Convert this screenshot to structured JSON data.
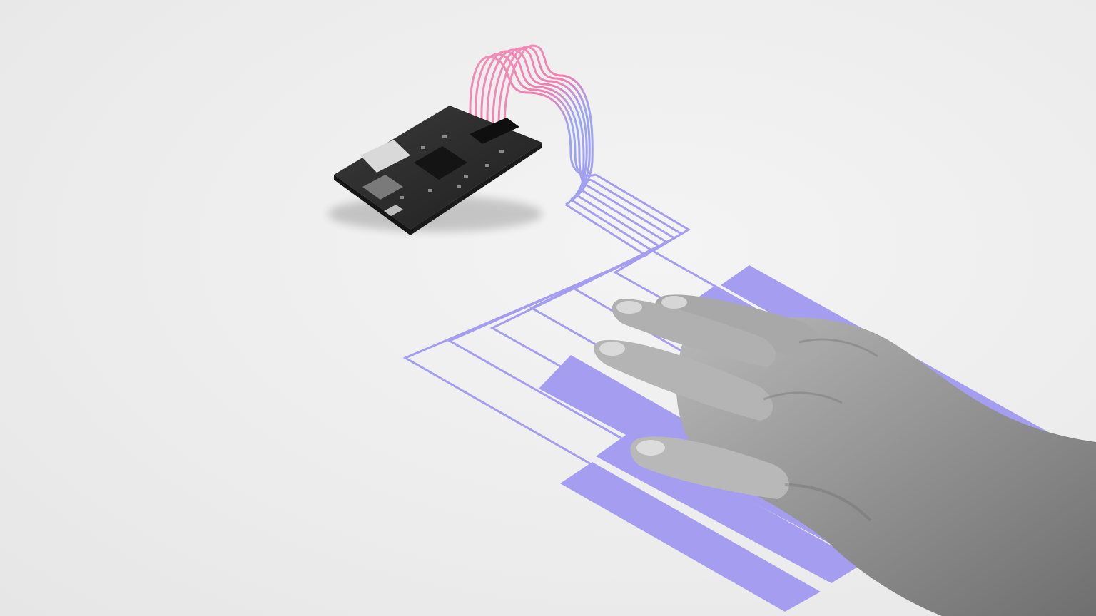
{
  "scene": {
    "subject": "hand-on-capacitive-touch-pads",
    "colors": {
      "background": "#efefef",
      "pad_fill": "#a59df0",
      "trace_stroke": "#a59df0",
      "wire_pink": "#f28fb8",
      "wire_blue": "#7fb2f0",
      "board": "#2b2b2b",
      "skin": "#9a9a9a"
    }
  }
}
